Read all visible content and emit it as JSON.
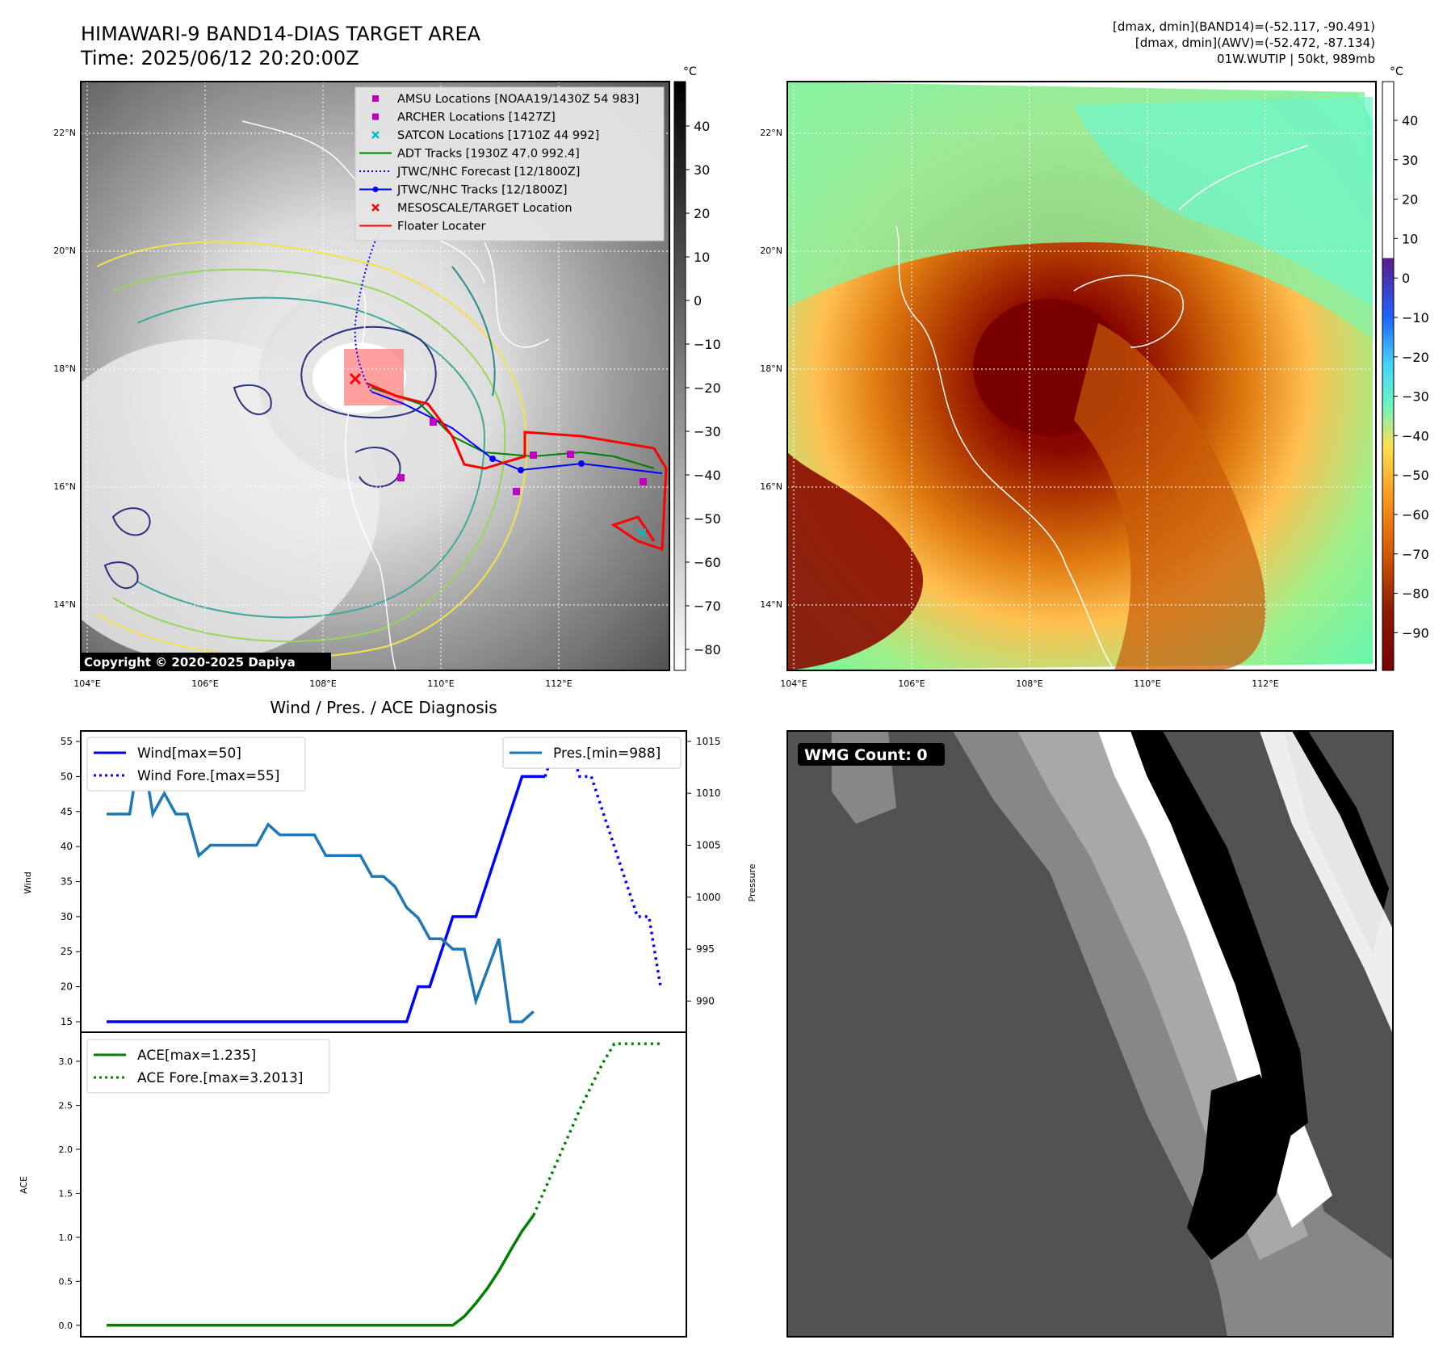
{
  "header": {
    "title": "HIMAWARI-9 BAND14-DIAS TARGET AREA",
    "time": "Time: 2025/06/12 20:20:00Z",
    "info_band14": "[dmax, dmin](BAND14)=(-52.117, -90.491)",
    "info_awv": "[dmax, dmin](AWV)=(-52.472, -87.134)",
    "info_storm": "01W.WUTIP | 50kt, 989mb"
  },
  "map_left": {
    "lat_ticks": [
      "22°N",
      "20°N",
      "18°N",
      "16°N",
      "14°N"
    ],
    "lon_ticks": [
      "104°E",
      "106°E",
      "108°E",
      "110°E",
      "112°E"
    ],
    "copyright": "Copyright © 2020-2025 Dapiya",
    "legend": [
      {
        "label": "AMSU Locations [NOAA19/1430Z 54 983]",
        "color": "#bf00bf",
        "marker": "square"
      },
      {
        "label": "ARCHER Locations [1427Z]",
        "color": "#bf00bf",
        "marker": "square"
      },
      {
        "label": "SATCON Locations [1710Z 44 992]",
        "color": "#00bfbf",
        "marker": "x"
      },
      {
        "label": "ADT Tracks [1930Z 47.0 992.4]",
        "color": "#008000",
        "marker": "line"
      },
      {
        "label": "JTWC/NHC Forecast [12/1800Z]",
        "color": "#0000ff",
        "marker": "dotted"
      },
      {
        "label": "JTWC/NHC Tracks [12/1800Z]",
        "color": "#0000ff",
        "marker": "line-dot"
      },
      {
        "label": "MESOSCALE/TARGET Location",
        "color": "#ff0000",
        "marker": "x"
      },
      {
        "label": "Floater Locater",
        "color": "#ff0000",
        "marker": "line"
      }
    ],
    "colorbar": {
      "unit": "°C",
      "ticks": [
        "40",
        "30",
        "20",
        "10",
        "0",
        "−10",
        "−20",
        "−30",
        "−40",
        "−50",
        "−60",
        "−70",
        "−80"
      ]
    }
  },
  "map_right": {
    "lat_ticks": [
      "22°N",
      "20°N",
      "18°N",
      "16°N",
      "14°N"
    ],
    "lon_ticks": [
      "104°E",
      "106°E",
      "108°E",
      "110°E",
      "112°E"
    ],
    "colorbar": {
      "unit": "°C",
      "ticks": [
        "40",
        "30",
        "20",
        "10",
        "0",
        "−10",
        "−20",
        "−30",
        "−40",
        "−50",
        "−60",
        "−70",
        "−80",
        "−90"
      ]
    }
  },
  "diagnosis": {
    "title": "Wind / Pres. / ACE Diagnosis",
    "wind_label": "Wind",
    "pressure_label": "Pressure",
    "ace_label": "ACE",
    "wind_legend": "Wind[max=50]",
    "wind_fore_legend": "Wind Fore.[max=55]",
    "pres_legend": "Pres.[min=988]",
    "ace_legend": "ACE[max=1.235]",
    "ace_fore_legend": "ACE Fore.[max=3.2013]"
  },
  "wmg": {
    "label": "WMG Count: 0"
  },
  "chart_data": [
    {
      "type": "line",
      "name": "wind",
      "x": [
        0,
        1,
        2,
        3,
        4,
        5,
        6,
        7,
        8,
        9,
        10,
        11,
        12,
        13,
        14,
        15,
        16,
        17,
        18,
        19,
        20,
        21,
        22,
        23,
        24,
        25,
        26,
        27,
        28,
        29,
        30,
        31,
        32,
        33,
        34,
        35,
        36,
        37,
        38,
        39,
        40,
        41,
        42,
        43,
        44,
        45,
        46,
        47,
        48
      ],
      "series": [
        {
          "name": "Wind[max=50]",
          "color": "#0000ff",
          "style": "solid",
          "values": [
            15,
            15,
            15,
            15,
            15,
            15,
            15,
            15,
            15,
            15,
            15,
            15,
            15,
            15,
            15,
            15,
            15,
            15,
            15,
            15,
            15,
            15,
            15,
            15,
            15,
            15,
            15,
            20,
            20,
            25,
            30,
            30,
            30,
            35,
            40,
            45,
            50,
            50,
            50,
            null,
            null,
            null,
            null,
            null,
            null,
            null,
            null,
            null,
            null
          ]
        },
        {
          "name": "Wind Fore.[max=55]",
          "color": "#0000ff",
          "style": "dotted",
          "values": [
            null,
            null,
            null,
            null,
            null,
            null,
            null,
            null,
            null,
            null,
            null,
            null,
            null,
            null,
            null,
            null,
            null,
            null,
            null,
            null,
            null,
            null,
            null,
            null,
            null,
            null,
            null,
            null,
            null,
            null,
            null,
            null,
            null,
            null,
            null,
            null,
            null,
            null,
            50,
            55,
            55,
            50,
            50,
            45,
            40,
            35,
            30,
            30,
            20
          ]
        }
      ],
      "ylim": [
        13.5,
        56.5
      ]
    },
    {
      "type": "line",
      "name": "pressure",
      "x": [
        0,
        1,
        2,
        3,
        4,
        5,
        6,
        7,
        8,
        9,
        10,
        11,
        12,
        13,
        14,
        15,
        16,
        17,
        18,
        19,
        20,
        21,
        22,
        23,
        24,
        25,
        26,
        27,
        28,
        29,
        30,
        31,
        32,
        33,
        34,
        35,
        36,
        37,
        38
      ],
      "series": [
        {
          "name": "Pres.[min=988]",
          "color": "#1f77b4",
          "style": "solid",
          "values": [
            1008,
            1008,
            1008,
            1015,
            1008,
            1010,
            1008,
            1008,
            1004,
            1005,
            1005,
            1005,
            1005,
            1005,
            1007,
            1006,
            1006,
            1006,
            1006,
            1004,
            1004,
            1004,
            1004,
            1002,
            1002,
            1001,
            999,
            998,
            996,
            996,
            995,
            995,
            990,
            993,
            996,
            988,
            988,
            989,
            null
          ]
        }
      ],
      "ylim": [
        987,
        1016
      ]
    },
    {
      "type": "line",
      "name": "ace",
      "x": [
        0,
        1,
        2,
        3,
        4,
        5,
        6,
        7,
        8,
        9,
        10,
        11,
        12,
        13,
        14,
        15,
        16,
        17,
        18,
        19,
        20,
        21,
        22,
        23,
        24,
        25,
        26,
        27,
        28,
        29,
        30,
        31,
        32,
        33,
        34,
        35,
        36,
        37,
        38,
        39,
        40,
        41,
        42,
        43,
        44,
        45,
        46,
        47,
        48
      ],
      "series": [
        {
          "name": "ACE[max=1.235]",
          "color": "#008000",
          "style": "solid",
          "values": [
            0,
            0,
            0,
            0,
            0,
            0,
            0,
            0,
            0,
            0,
            0,
            0,
            0,
            0,
            0,
            0,
            0,
            0,
            0,
            0,
            0,
            0,
            0,
            0,
            0,
            0,
            0,
            0,
            0,
            0,
            0,
            0.1,
            0.25,
            0.42,
            0.62,
            0.85,
            1.07,
            1.25,
            null,
            null,
            null,
            null,
            null,
            null,
            null,
            null,
            null,
            null,
            null
          ]
        },
        {
          "name": "ACE Fore.[max=3.2013]",
          "color": "#008000",
          "style": "dotted",
          "values": [
            null,
            null,
            null,
            null,
            null,
            null,
            null,
            null,
            null,
            null,
            null,
            null,
            null,
            null,
            null,
            null,
            null,
            null,
            null,
            null,
            null,
            null,
            null,
            null,
            null,
            null,
            null,
            null,
            null,
            null,
            null,
            null,
            null,
            null,
            null,
            null,
            null,
            1.25,
            1.55,
            1.85,
            2.15,
            2.45,
            2.72,
            2.98,
            3.2,
            3.2,
            3.2,
            3.2,
            3.2
          ]
        }
      ],
      "yticks": [
        "0.0",
        "0.5",
        "1.0",
        "1.5",
        "2.0",
        "2.5",
        "3.0"
      ],
      "ylim": [
        -0.13,
        3.33
      ]
    }
  ],
  "wind_ticks": [
    "55",
    "50",
    "45",
    "40",
    "35",
    "30",
    "25",
    "20",
    "15"
  ],
  "pressure_ticks": [
    "1015",
    "1010",
    "1005",
    "1000",
    "995",
    "990"
  ]
}
